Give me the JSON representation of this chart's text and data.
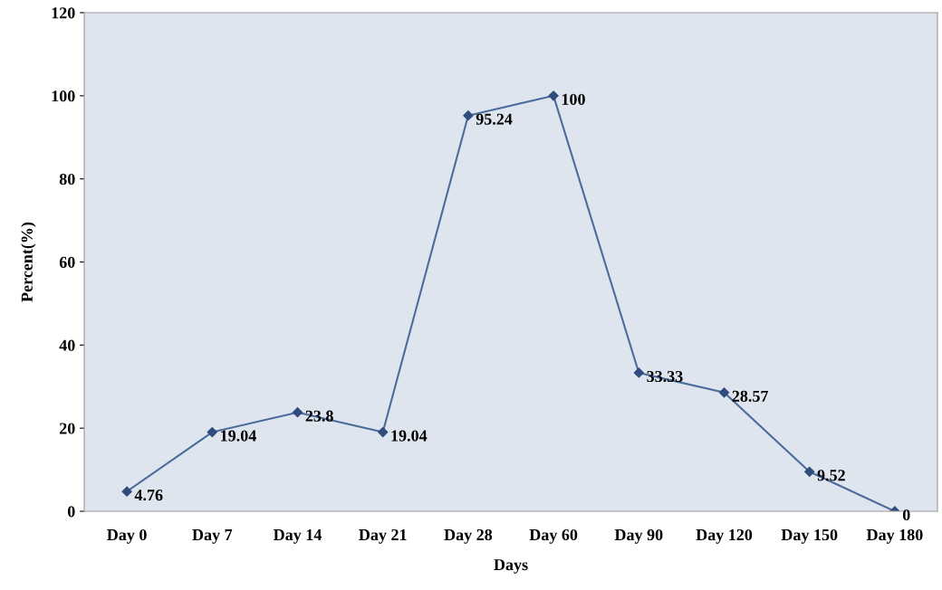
{
  "chart_data": {
    "type": "line",
    "xlabel": "Days",
    "ylabel": "Percent(%)",
    "categories": [
      "Day 0",
      "Day 7",
      "Day 14",
      "Day 21",
      "Day 28",
      "Day 60",
      "Day 90",
      "Day 120",
      "Day 150",
      "Day 180"
    ],
    "series": [
      {
        "color": "#4a6b9c",
        "values": [
          4.76,
          19.04,
          23.8,
          19.04,
          95.24,
          100,
          33.33,
          28.57,
          9.52,
          0
        ]
      }
    ],
    "ylim": [
      0,
      120
    ],
    "yticks": [
      0,
      20,
      40,
      60,
      80,
      100,
      120
    ],
    "marker": "diamond",
    "line_style": "solid",
    "data_labels": true,
    "grid": false,
    "legend": false
  }
}
